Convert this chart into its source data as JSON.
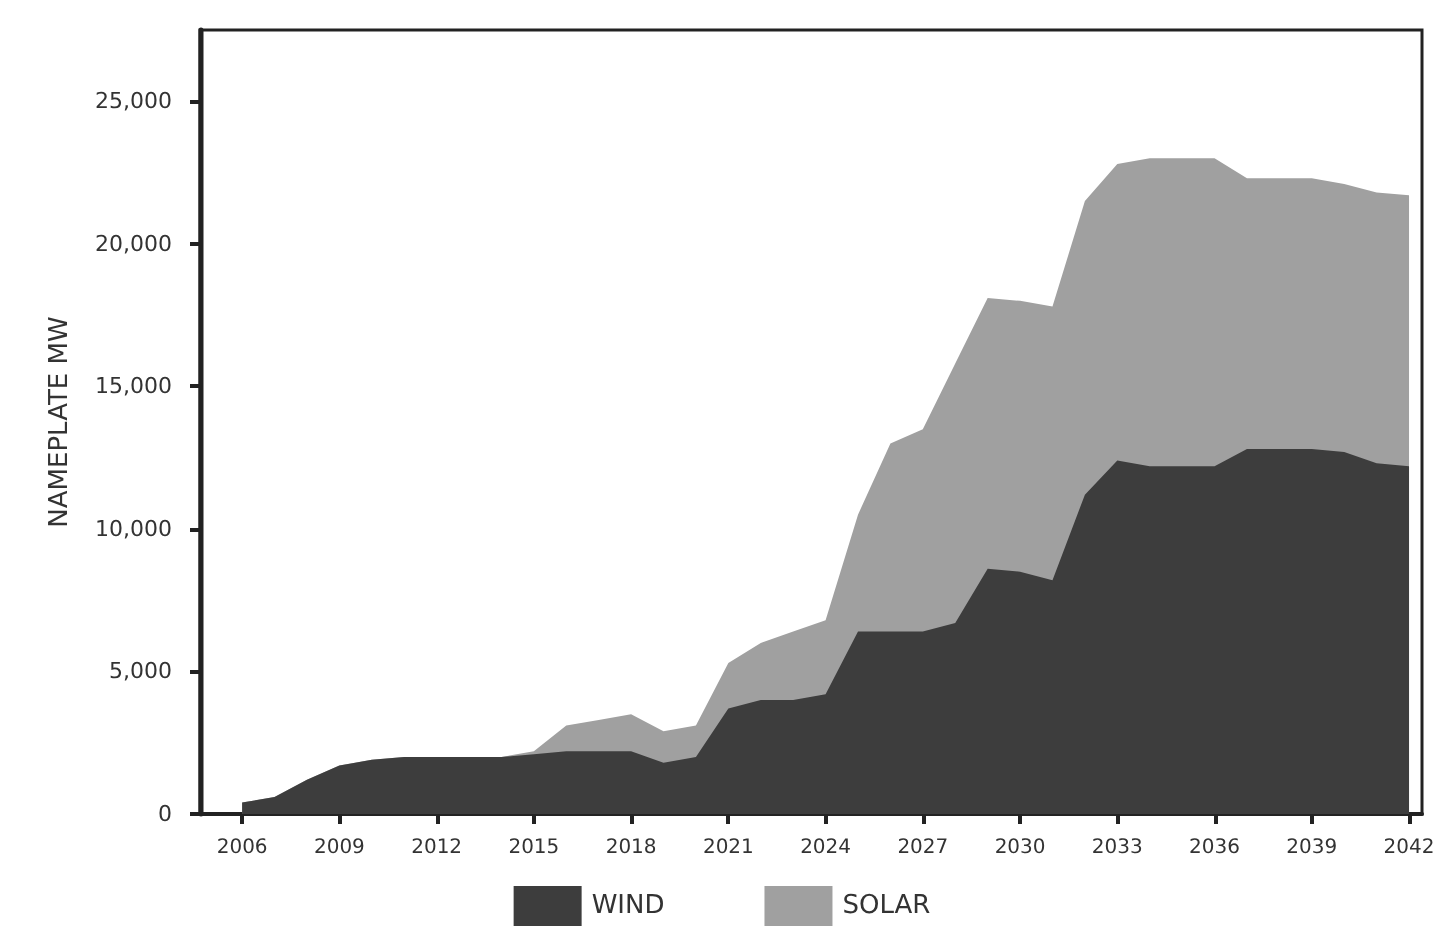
{
  "chart_data": {
    "type": "area",
    "stacked": true,
    "ylabel": "NAMEPLATE MW",
    "x": [
      2006,
      2007,
      2008,
      2009,
      2010,
      2011,
      2012,
      2013,
      2014,
      2015,
      2016,
      2017,
      2018,
      2019,
      2020,
      2021,
      2022,
      2023,
      2024,
      2025,
      2026,
      2027,
      2028,
      2029,
      2030,
      2031,
      2032,
      2033,
      2034,
      2035,
      2036,
      2037,
      2038,
      2039,
      2040,
      2041,
      2042
    ],
    "series": [
      {
        "name": "WIND",
        "color": "#3d3d3d",
        "values": [
          400,
          600,
          1200,
          1700,
          1900,
          2000,
          2000,
          2000,
          2000,
          2100,
          2200,
          2200,
          2200,
          1800,
          2000,
          3700,
          4000,
          4000,
          4200,
          6400,
          6400,
          6400,
          6700,
          8600,
          8500,
          8200,
          11200,
          12400,
          12200,
          12200,
          12200,
          12800,
          12800,
          12800,
          12700,
          12300,
          12200
        ]
      },
      {
        "name": "SOLAR",
        "color": "#a0a0a0",
        "values": [
          0,
          0,
          0,
          0,
          0,
          0,
          0,
          0,
          0,
          100,
          900,
          1100,
          1300,
          1100,
          1100,
          1600,
          2000,
          2400,
          2600,
          4100,
          6600,
          7100,
          9100,
          9500,
          9500,
          9600,
          10300,
          10400,
          10800,
          10800,
          10800,
          9500,
          9500,
          9500,
          9400,
          9500,
          9500
        ]
      }
    ],
    "xlim": [
      2004.7,
      2042.4
    ],
    "xticks": [
      2006,
      2009,
      2012,
      2015,
      2018,
      2021,
      2024,
      2027,
      2030,
      2033,
      2036,
      2039,
      2042
    ],
    "ylim": [
      0,
      27500
    ],
    "yticks": [
      0,
      {
        "value": 5000,
        "label": "5,000"
      },
      {
        "value": 10000,
        "label": "10,000"
      },
      {
        "value": 15000,
        "label": "15,000"
      },
      {
        "value": 20000,
        "label": "20,000"
      },
      {
        "value": 25000,
        "label": "25,000"
      }
    ],
    "grid": false,
    "legend": "bottom",
    "marker": "none"
  }
}
